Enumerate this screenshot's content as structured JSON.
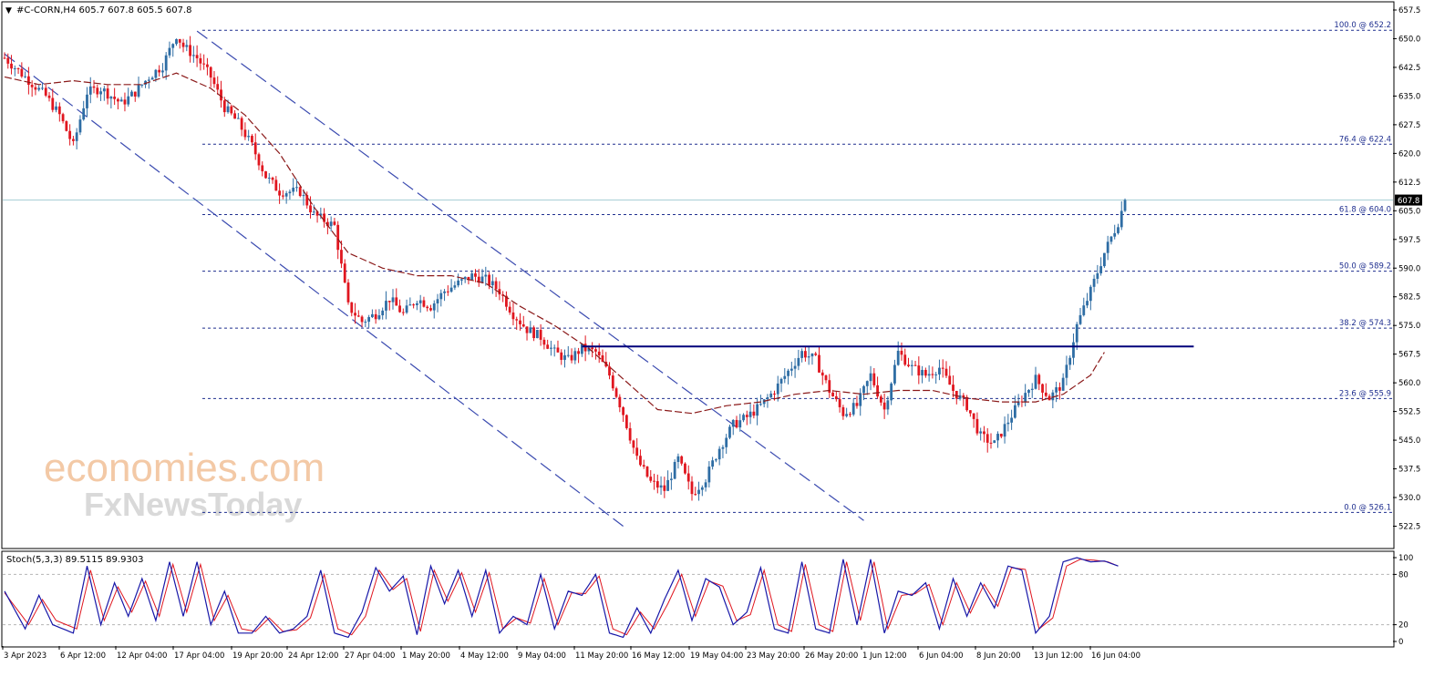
{
  "header": {
    "symbol_line": "#C-CORN,H4  605.7 607.8 605.5 607.8",
    "stoch_line": "Stoch(5,3,3) 89.5115 89.9303"
  },
  "watermark": {
    "line1": "economies.com",
    "line2": "FxNewsToday"
  },
  "colors": {
    "bull": "#2e6da4",
    "bear": "#e0161f",
    "ma": "#8b1a1a",
    "fib": "#1f2f8f",
    "channel": "#3b4bb0",
    "resistance": "#00007a",
    "stoch_main": "#1717a8",
    "stoch_signal": "#e0161f"
  },
  "chart_data": [
    {
      "type": "candlestick",
      "symbol": "#C-CORN",
      "timeframe": "H4",
      "ohlc_last": {
        "open": 605.7,
        "high": 607.8,
        "low": 605.5,
        "close": 607.8
      },
      "current_price_label": "607.8",
      "ylim": [
        522.5,
        657.5
      ],
      "y_ticks": [
        "657.5",
        "650.0",
        "642.5",
        "635.0",
        "627.5",
        "620.0",
        "612.5",
        "605.0",
        "597.5",
        "590.0",
        "582.5",
        "575.0",
        "567.5",
        "560.0",
        "552.5",
        "545.0",
        "537.5",
        "530.0",
        "522.5"
      ],
      "x_ticks": [
        "3 Apr 2023",
        "6 Apr 12:00",
        "12 Apr 04:00",
        "17 Apr 04:00",
        "19 Apr 20:00",
        "24 Apr 12:00",
        "27 Apr 04:00",
        "1 May 20:00",
        "4 May 12:00",
        "9 May 04:00",
        "11 May 20:00",
        "16 May 12:00",
        "19 May 04:00",
        "23 May 20:00",
        "26 May 20:00",
        "1 Jun 12:00",
        "6 Jun 04:00",
        "8 Jun 20:00",
        "13 Jun 12:00",
        "16 Jun 04:00"
      ],
      "price_path": [
        [
          0,
          645
        ],
        [
          6,
          640
        ],
        [
          12,
          635
        ],
        [
          16,
          630
        ],
        [
          20,
          622
        ],
        [
          24,
          636
        ],
        [
          28,
          637
        ],
        [
          34,
          633
        ],
        [
          38,
          636
        ],
        [
          42,
          640
        ],
        [
          46,
          643
        ],
        [
          50,
          651
        ],
        [
          52,
          648
        ],
        [
          56,
          645
        ],
        [
          60,
          640
        ],
        [
          64,
          632
        ],
        [
          68,
          628
        ],
        [
          72,
          622
        ],
        [
          76,
          614
        ],
        [
          80,
          610
        ],
        [
          86,
          610
        ],
        [
          90,
          604
        ],
        [
          96,
          601
        ],
        [
          100,
          580
        ],
        [
          104,
          576
        ],
        [
          108,
          578
        ],
        [
          112,
          582
        ],
        [
          116,
          578
        ],
        [
          120,
          582
        ],
        [
          124,
          580
        ],
        [
          128,
          584
        ],
        [
          132,
          586
        ],
        [
          136,
          588
        ],
        [
          140,
          587
        ],
        [
          144,
          584
        ],
        [
          148,
          578
        ],
        [
          152,
          574
        ],
        [
          156,
          572
        ],
        [
          160,
          568
        ],
        [
          164,
          566
        ],
        [
          168,
          569
        ],
        [
          172,
          568
        ],
        [
          176,
          562
        ],
        [
          180,
          552
        ],
        [
          184,
          540
        ],
        [
          188,
          534
        ],
        [
          192,
          532
        ],
        [
          196,
          540
        ],
        [
          200,
          531
        ],
        [
          204,
          535
        ],
        [
          208,
          543
        ],
        [
          212,
          549
        ],
        [
          216,
          551
        ],
        [
          220,
          554
        ],
        [
          224,
          558
        ],
        [
          228,
          563
        ],
        [
          232,
          568
        ],
        [
          236,
          566
        ],
        [
          240,
          558
        ],
        [
          244,
          552
        ],
        [
          248,
          554
        ],
        [
          252,
          562
        ],
        [
          256,
          553
        ],
        [
          260,
          568
        ],
        [
          264,
          564
        ],
        [
          268,
          562
        ],
        [
          272,
          564
        ],
        [
          276,
          558
        ],
        [
          280,
          554
        ],
        [
          284,
          546
        ],
        [
          288,
          544
        ],
        [
          292,
          550
        ],
        [
          296,
          556
        ],
        [
          300,
          561
        ],
        [
          304,
          556
        ],
        [
          308,
          560
        ],
        [
          312,
          575
        ],
        [
          316,
          584
        ],
        [
          320,
          594
        ],
        [
          324,
          602
        ],
        [
          326,
          607.8
        ]
      ],
      "moving_average": [
        [
          0,
          640
        ],
        [
          10,
          638
        ],
        [
          20,
          639
        ],
        [
          30,
          638
        ],
        [
          40,
          638
        ],
        [
          50,
          641
        ],
        [
          60,
          637
        ],
        [
          70,
          630
        ],
        [
          80,
          620
        ],
        [
          90,
          606
        ],
        [
          100,
          594
        ],
        [
          110,
          590
        ],
        [
          120,
          588
        ],
        [
          130,
          588
        ],
        [
          140,
          586
        ],
        [
          150,
          580
        ],
        [
          160,
          575
        ],
        [
          170,
          569
        ],
        [
          180,
          561
        ],
        [
          190,
          553
        ],
        [
          200,
          552
        ],
        [
          210,
          554
        ],
        [
          220,
          555
        ],
        [
          230,
          557
        ],
        [
          240,
          558
        ],
        [
          250,
          557
        ],
        [
          260,
          558
        ],
        [
          270,
          558
        ],
        [
          280,
          556
        ],
        [
          290,
          555
        ],
        [
          300,
          555
        ],
        [
          308,
          557
        ],
        [
          316,
          562
        ],
        [
          320,
          568
        ]
      ],
      "fibonacci": [
        {
          "label": "100.0 @ 652.2",
          "price": 652.2
        },
        {
          "label": "76.4 @ 622.4",
          "price": 622.4
        },
        {
          "label": "61.8 @ 604.0",
          "price": 604.0
        },
        {
          "label": "50.0 @ 589.2",
          "price": 589.2
        },
        {
          "label": "38.2 @ 574.3",
          "price": 574.3
        },
        {
          "label": "23.6 @ 555.9",
          "price": 555.9
        },
        {
          "label": "0.0 @ 526.1",
          "price": 526.1
        }
      ],
      "resistance": {
        "price": 569.5,
        "from_bar": 168,
        "to_bar": 346
      },
      "channel": {
        "upper": [
          [
            56,
            652
          ],
          [
            250,
            524
          ]
        ],
        "lower": [
          [
            0,
            646
          ],
          [
            180,
            522.5
          ]
        ]
      }
    },
    {
      "type": "line",
      "name": "Stoch(5,3,3)",
      "main_value": 89.5115,
      "signal_value": 89.9303,
      "ylim": [
        0,
        100
      ],
      "y_ticks": [
        "100",
        "80",
        "20",
        "0"
      ],
      "levels": [
        80,
        20
      ],
      "main_path": [
        [
          0,
          60
        ],
        [
          6,
          15
        ],
        [
          10,
          55
        ],
        [
          14,
          20
        ],
        [
          20,
          10
        ],
        [
          24,
          90
        ],
        [
          28,
          20
        ],
        [
          32,
          70
        ],
        [
          36,
          30
        ],
        [
          40,
          75
        ],
        [
          44,
          25
        ],
        [
          48,
          95
        ],
        [
          52,
          30
        ],
        [
          56,
          95
        ],
        [
          60,
          20
        ],
        [
          64,
          60
        ],
        [
          68,
          10
        ],
        [
          72,
          10
        ],
        [
          76,
          30
        ],
        [
          80,
          10
        ],
        [
          84,
          15
        ],
        [
          88,
          30
        ],
        [
          92,
          85
        ],
        [
          96,
          10
        ],
        [
          100,
          5
        ],
        [
          104,
          35
        ],
        [
          108,
          88
        ],
        [
          112,
          60
        ],
        [
          116,
          78
        ],
        [
          120,
          8
        ],
        [
          124,
          90
        ],
        [
          128,
          45
        ],
        [
          132,
          85
        ],
        [
          136,
          30
        ],
        [
          140,
          85
        ],
        [
          144,
          10
        ],
        [
          148,
          30
        ],
        [
          152,
          20
        ],
        [
          156,
          80
        ],
        [
          160,
          15
        ],
        [
          164,
          60
        ],
        [
          168,
          55
        ],
        [
          172,
          80
        ],
        [
          176,
          10
        ],
        [
          180,
          5
        ],
        [
          184,
          40
        ],
        [
          188,
          10
        ],
        [
          192,
          50
        ],
        [
          196,
          85
        ],
        [
          200,
          25
        ],
        [
          204,
          75
        ],
        [
          208,
          65
        ],
        [
          212,
          20
        ],
        [
          216,
          35
        ],
        [
          220,
          88
        ],
        [
          224,
          15
        ],
        [
          228,
          10
        ],
        [
          232,
          95
        ],
        [
          236,
          15
        ],
        [
          240,
          10
        ],
        [
          244,
          98
        ],
        [
          248,
          20
        ],
        [
          252,
          98
        ],
        [
          256,
          10
        ],
        [
          260,
          60
        ],
        [
          264,
          55
        ],
        [
          268,
          70
        ],
        [
          272,
          15
        ],
        [
          276,
          75
        ],
        [
          280,
          30
        ],
        [
          284,
          70
        ],
        [
          288,
          40
        ],
        [
          292,
          90
        ],
        [
          296,
          85
        ],
        [
          300,
          10
        ],
        [
          304,
          30
        ],
        [
          308,
          95
        ],
        [
          312,
          100
        ],
        [
          316,
          95
        ],
        [
          320,
          96
        ],
        [
          324,
          90
        ]
      ],
      "signal_path": [
        [
          0,
          58
        ],
        [
          7,
          20
        ],
        [
          11,
          50
        ],
        [
          15,
          25
        ],
        [
          21,
          15
        ],
        [
          25,
          85
        ],
        [
          29,
          25
        ],
        [
          33,
          65
        ],
        [
          37,
          35
        ],
        [
          41,
          72
        ],
        [
          45,
          30
        ],
        [
          49,
          92
        ],
        [
          53,
          35
        ],
        [
          57,
          92
        ],
        [
          61,
          25
        ],
        [
          65,
          55
        ],
        [
          69,
          15
        ],
        [
          73,
          12
        ],
        [
          77,
          28
        ],
        [
          81,
          12
        ],
        [
          85,
          14
        ],
        [
          89,
          28
        ],
        [
          93,
          80
        ],
        [
          97,
          15
        ],
        [
          101,
          8
        ],
        [
          105,
          30
        ],
        [
          109,
          85
        ],
        [
          113,
          62
        ],
        [
          117,
          75
        ],
        [
          121,
          12
        ],
        [
          125,
          85
        ],
        [
          129,
          48
        ],
        [
          133,
          82
        ],
        [
          137,
          35
        ],
        [
          141,
          82
        ],
        [
          145,
          15
        ],
        [
          149,
          28
        ],
        [
          153,
          22
        ],
        [
          157,
          75
        ],
        [
          161,
          20
        ],
        [
          165,
          58
        ],
        [
          169,
          57
        ],
        [
          173,
          78
        ],
        [
          177,
          15
        ],
        [
          181,
          8
        ],
        [
          185,
          35
        ],
        [
          189,
          15
        ],
        [
          193,
          45
        ],
        [
          197,
          80
        ],
        [
          201,
          30
        ],
        [
          205,
          72
        ],
        [
          209,
          66
        ],
        [
          213,
          25
        ],
        [
          217,
          32
        ],
        [
          221,
          85
        ],
        [
          225,
          20
        ],
        [
          229,
          12
        ],
        [
          233,
          92
        ],
        [
          237,
          20
        ],
        [
          241,
          12
        ],
        [
          245,
          95
        ],
        [
          249,
          25
        ],
        [
          253,
          95
        ],
        [
          257,
          15
        ],
        [
          261,
          55
        ],
        [
          265,
          57
        ],
        [
          269,
          68
        ],
        [
          273,
          20
        ],
        [
          277,
          70
        ],
        [
          281,
          34
        ],
        [
          285,
          68
        ],
        [
          289,
          42
        ],
        [
          293,
          88
        ],
        [
          297,
          86
        ],
        [
          301,
          15
        ],
        [
          305,
          28
        ],
        [
          309,
          90
        ],
        [
          313,
          98
        ],
        [
          317,
          97
        ],
        [
          321,
          95
        ],
        [
          324,
          90
        ]
      ]
    }
  ]
}
